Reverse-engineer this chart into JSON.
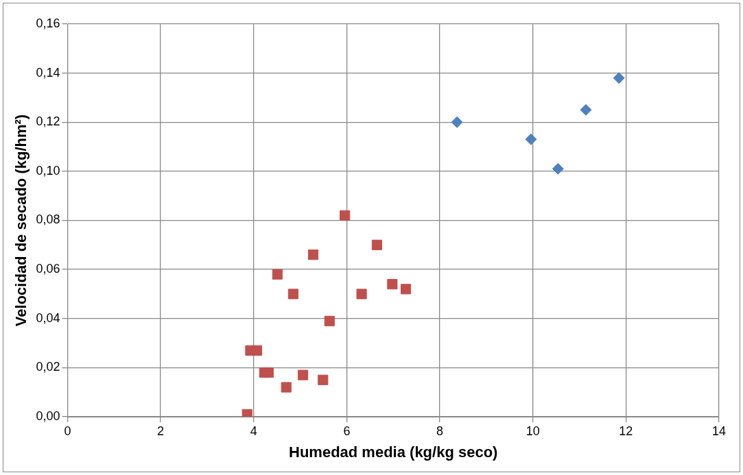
{
  "chart_data": {
    "type": "scatter",
    "xlabel": "Humedad media (kg/kg seco)",
    "ylabel": "Velocidad de secado (kg/hm²)",
    "xlim": [
      0,
      14
    ],
    "xticks": [
      0,
      2,
      4,
      6,
      8,
      10,
      12,
      14
    ],
    "ylim": [
      0,
      0.16
    ],
    "yticks": [
      {
        "value": 0,
        "label": "0,00"
      },
      {
        "value": 0.02,
        "label": "0,02"
      },
      {
        "value": 0.04,
        "label": "0,04"
      },
      {
        "value": 0.06,
        "label": "0,06"
      },
      {
        "value": 0.08,
        "label": "0,08"
      },
      {
        "value": 0.1,
        "label": "0,10"
      },
      {
        "value": 0.12,
        "label": "0,12"
      },
      {
        "value": 0.14,
        "label": "0,14"
      },
      {
        "value": 0.16,
        "label": "0,16"
      }
    ],
    "grid": true,
    "legend": false,
    "series": [
      {
        "color": "#4f81bd",
        "marker": "diamond",
        "x": [
          8.37,
          9.96,
          10.54,
          11.14,
          11.85
        ],
        "values": [
          0.12,
          0.113,
          0.101,
          0.125,
          0.138
        ]
      },
      {
        "color": "#c0504d",
        "marker": "square",
        "x": [
          3.86,
          3.93,
          4.07,
          4.23,
          4.32,
          4.51,
          4.7,
          4.85,
          5.06,
          5.28,
          5.49,
          5.63,
          5.96,
          6.32,
          6.65,
          6.98,
          7.27
        ],
        "values": [
          0.001,
          0.027,
          0.027,
          0.018,
          0.018,
          0.058,
          0.012,
          0.05,
          0.017,
          0.066,
          0.015,
          0.039,
          0.082,
          0.05,
          0.07,
          0.054,
          0.052
        ]
      }
    ]
  }
}
